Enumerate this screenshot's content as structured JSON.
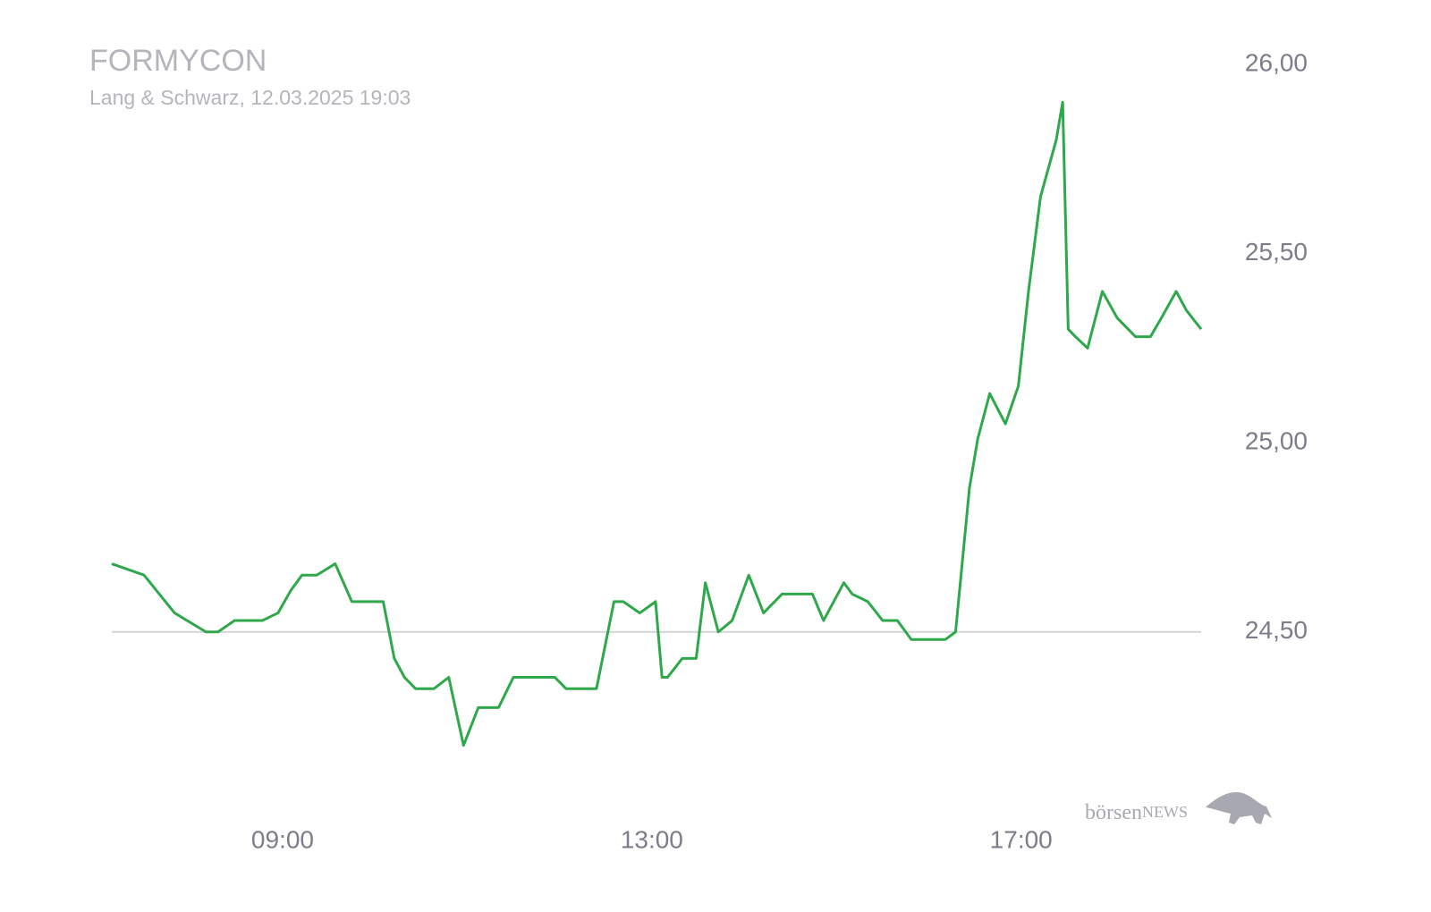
{
  "chart_data": {
    "type": "line",
    "title": "FORMYCON",
    "subtitle": "Lang & Schwarz, 12.03.2025 19:03",
    "watermark": [
      "börsen",
      "NEWS"
    ],
    "x": [
      7.15,
      7.5,
      7.83,
      8.17,
      8.3,
      8.48,
      8.78,
      8.95,
      9.09,
      9.21,
      9.37,
      9.57,
      9.75,
      10.09,
      10.21,
      10.32,
      10.44,
      10.64,
      10.8,
      10.96,
      11.12,
      11.34,
      11.5,
      11.95,
      12.07,
      12.4,
      12.59,
      12.69,
      12.87,
      13.04,
      13.11,
      13.17,
      13.33,
      13.48,
      13.58,
      13.72,
      13.87,
      14.05,
      14.21,
      14.41,
      14.74,
      14.86,
      15.08,
      15.17,
      15.34,
      15.5,
      15.66,
      15.81,
      16.18,
      16.29,
      16.44,
      16.53,
      16.66,
      16.83,
      16.97,
      17.08,
      17.21,
      17.38,
      17.45,
      17.51,
      17.59,
      17.72,
      17.88,
      18.04,
      18.24,
      18.4,
      18.52,
      18.68,
      18.79,
      18.95
    ],
    "series": [
      {
        "name": "FORMYCON",
        "color": "#2ea84a",
        "values": [
          24.68,
          24.65,
          24.55,
          24.5,
          24.5,
          24.53,
          24.53,
          24.55,
          24.61,
          24.65,
          24.65,
          24.68,
          24.58,
          24.58,
          24.43,
          24.38,
          24.35,
          24.35,
          24.38,
          24.2,
          24.3,
          24.3,
          24.38,
          24.38,
          24.35,
          24.35,
          24.58,
          24.58,
          24.55,
          24.58,
          24.38,
          24.38,
          24.43,
          24.43,
          24.63,
          24.5,
          24.53,
          24.65,
          24.55,
          24.6,
          24.6,
          24.53,
          24.63,
          24.6,
          24.58,
          24.53,
          24.53,
          24.48,
          24.48,
          24.5,
          24.88,
          25.01,
          25.13,
          25.05,
          25.15,
          25.4,
          25.65,
          25.8,
          25.9,
          25.3,
          25.28,
          25.25,
          25.4,
          25.33,
          25.28,
          25.28,
          25.33,
          25.4,
          25.35,
          25.3
        ]
      }
    ],
    "xlim": [
      7.15,
      18.95
    ],
    "xticks": [
      {
        "value": 9,
        "label": "09:00"
      },
      {
        "value": 13,
        "label": "13:00"
      },
      {
        "value": 17,
        "label": "17:00"
      }
    ],
    "ylim": [
      24.1,
      26.0
    ],
    "yticks": [
      {
        "value": 24.5,
        "label": "24,50"
      },
      {
        "value": 25,
        "label": "25,00"
      },
      {
        "value": 25.5,
        "label": "25,50"
      },
      {
        "value": 26,
        "label": "26,00"
      }
    ],
    "baseline": 24.5,
    "grid": false
  }
}
